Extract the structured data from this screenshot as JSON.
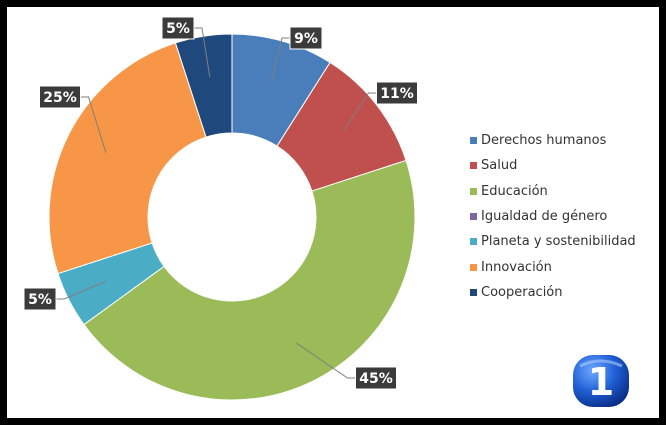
{
  "chart_data": {
    "type": "pie",
    "variant": "donut",
    "title": "",
    "categories": [
      "Derechos humanos",
      "Salud",
      "Educación",
      "Igualdad de género",
      "Planeta y sostenibilidad",
      "Innovación",
      "Cooperación"
    ],
    "values": [
      9,
      11,
      45,
      0,
      5,
      25,
      5
    ],
    "data_labels": [
      "9%",
      "11%",
      "45%",
      "",
      "5%",
      "25%",
      "5%"
    ],
    "colors": [
      "#4a7ebb",
      "#c0504d",
      "#9bbb59",
      "#8064a2",
      "#4bacc6",
      "#f79646",
      "#1f497d"
    ],
    "legend_position": "right"
  },
  "label_style": {
    "background": "#3b3b3b",
    "text_color": "#ffffff",
    "leader_line_color": "#7f7f7f"
  },
  "logo": {
    "icon": "tve-channel-1-logo-icon",
    "text": "1"
  }
}
